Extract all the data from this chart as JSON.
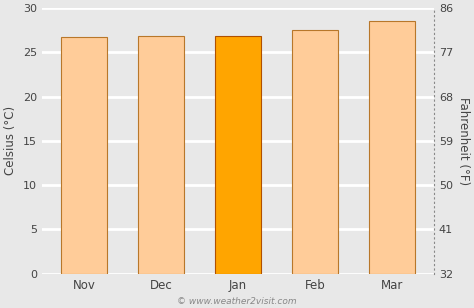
{
  "categories": [
    "Nov",
    "Dec",
    "Jan",
    "Feb",
    "Mar"
  ],
  "values": [
    26.7,
    26.8,
    26.8,
    27.5,
    28.5
  ],
  "bar_colors": [
    "#FFCC99",
    "#FFCC99",
    "#FFA500",
    "#FFCC99",
    "#FFCC99"
  ],
  "bar_edgecolors": [
    "#b8772a",
    "#b8772a",
    "#b05000",
    "#b8772a",
    "#b8772a"
  ],
  "highlight_index": 2,
  "ylabel_left": "Celsius (°C)",
  "ylabel_right": "Fahrenheit (°F)",
  "ylim_celsius": [
    0,
    30
  ],
  "yticks_celsius": [
    0,
    5,
    10,
    15,
    20,
    25,
    30
  ],
  "yticks_fahrenheit": [
    32,
    41,
    50,
    59,
    68,
    77,
    86
  ],
  "background_color": "#e8e8e8",
  "plot_background": "#e8e8e8",
  "grid_color": "#ffffff",
  "copyright_text": "© www.weather2visit.com",
  "bar_width": 0.6
}
